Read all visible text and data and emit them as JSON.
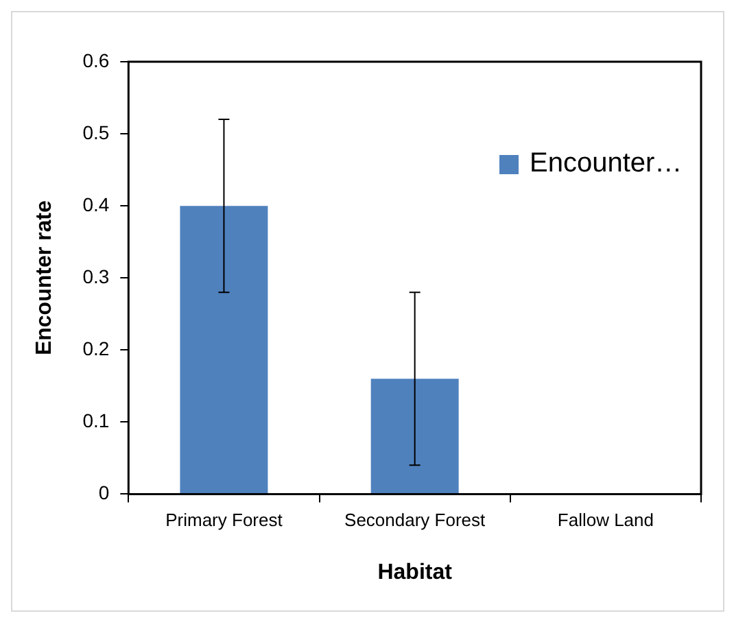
{
  "chart_data": {
    "type": "bar",
    "xlabel": "Habitat",
    "ylabel": "Encounter rate",
    "categories": [
      "Primary Forest",
      "Secondary Forest",
      "Fallow Land"
    ],
    "series": [
      {
        "name": "Encounter…",
        "color": "#4f81bd",
        "values": [
          0.4,
          0.16,
          0
        ],
        "errors": [
          0.12,
          0.12,
          null
        ]
      }
    ],
    "ylim": [
      0,
      0.6
    ],
    "yticks": [
      0,
      0.1,
      0.2,
      0.3,
      0.4,
      0.5,
      0.6
    ],
    "grid": false,
    "legend": "top right"
  }
}
